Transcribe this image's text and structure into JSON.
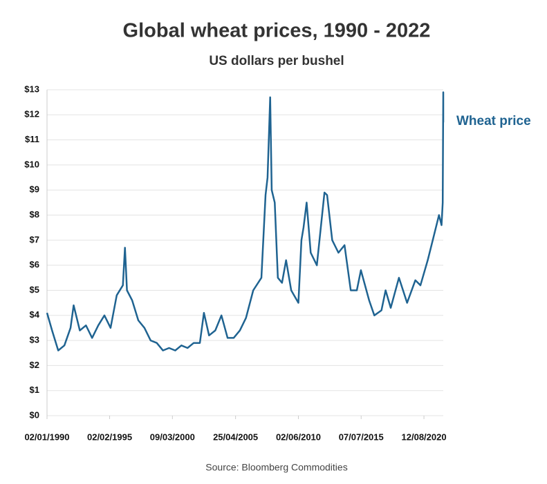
{
  "chart_data": {
    "type": "line",
    "title": "Global wheat prices, 1990 - 2022",
    "subtitle": "US dollars per bushel",
    "source": "Source: Bloomberg Commodities",
    "x": [
      "1990-01-02",
      "1990-06-01",
      "1990-12-01",
      "1991-06-01",
      "1991-12-01",
      "1992-03-01",
      "1992-09-01",
      "1993-03-01",
      "1993-09-01",
      "1994-03-01",
      "1994-09-01",
      "1995-03-01",
      "1995-09-01",
      "1996-03-01",
      "1996-05-01",
      "1996-07-01",
      "1996-12-01",
      "1997-06-01",
      "1997-12-01",
      "1998-06-01",
      "1998-12-01",
      "1999-06-01",
      "1999-12-01",
      "2000-06-01",
      "2000-12-01",
      "2001-06-01",
      "2001-12-01",
      "2002-06-01",
      "2002-10-01",
      "2003-03-01",
      "2003-09-01",
      "2004-03-01",
      "2004-09-01",
      "2005-03-01",
      "2005-09-01",
      "2006-03-01",
      "2006-10-01",
      "2007-06-01",
      "2007-10-01",
      "2007-12-01",
      "2008-02-15",
      "2008-04-01",
      "2008-07-01",
      "2008-10-01",
      "2009-02-01",
      "2009-06-01",
      "2009-11-01",
      "2010-06-01",
      "2010-09-01",
      "2010-11-01",
      "2011-02-01",
      "2011-06-01",
      "2011-12-01",
      "2012-07-15",
      "2012-10-01",
      "2013-03-01",
      "2013-09-01",
      "2014-03-01",
      "2014-09-01",
      "2015-03-01",
      "2015-07-01",
      "2016-03-01",
      "2016-08-01",
      "2017-03-01",
      "2017-07-01",
      "2017-12-01",
      "2018-08-01",
      "2019-04-01",
      "2019-12-01",
      "2020-05-01",
      "2020-12-01",
      "2021-05-01",
      "2021-11-01",
      "2022-01-15",
      "2022-02-20",
      "2022-03-07",
      "2022-03-08"
    ],
    "series": [
      {
        "name": "Wheat price",
        "color": "#1f6391",
        "values": [
          4.1,
          3.4,
          2.6,
          2.8,
          3.5,
          4.4,
          3.4,
          3.6,
          3.1,
          3.6,
          4.0,
          3.5,
          4.8,
          5.2,
          6.7,
          5.0,
          4.6,
          3.8,
          3.5,
          3.0,
          2.9,
          2.6,
          2.7,
          2.6,
          2.8,
          2.7,
          2.9,
          2.9,
          4.1,
          3.2,
          3.4,
          4.0,
          3.1,
          3.1,
          3.4,
          3.9,
          5.0,
          5.5,
          8.8,
          9.5,
          12.7,
          9.0,
          8.5,
          5.5,
          5.3,
          6.2,
          5.0,
          4.5,
          7.0,
          7.5,
          8.5,
          6.5,
          6.0,
          8.9,
          8.8,
          7.0,
          6.5,
          6.8,
          5.0,
          5.0,
          5.8,
          4.6,
          4.0,
          4.2,
          5.0,
          4.3,
          5.5,
          4.5,
          5.4,
          5.2,
          6.2,
          7.0,
          8.0,
          7.6,
          8.5,
          12.9,
          11.7
        ]
      }
    ],
    "xlim": [
      "1990-01-02",
      "2022-03-08"
    ],
    "xticks": [
      {
        "value": "1990-01-02",
        "label": "02/01/1990"
      },
      {
        "value": "1995-02-02",
        "label": "02/02/1995"
      },
      {
        "value": "2000-03-09",
        "label": "09/03/2000"
      },
      {
        "value": "2005-04-25",
        "label": "25/04/2005"
      },
      {
        "value": "2010-06-02",
        "label": "02/06/2010"
      },
      {
        "value": "2015-07-07",
        "label": "07/07/2015"
      },
      {
        "value": "2020-08-12",
        "label": "12/08/2020"
      }
    ],
    "ylim": [
      0,
      13
    ],
    "yticks": [
      {
        "value": 0,
        "label": "$0"
      },
      {
        "value": 1,
        "label": "$1"
      },
      {
        "value": 2,
        "label": "$2"
      },
      {
        "value": 3,
        "label": "$3"
      },
      {
        "value": 4,
        "label": "$4"
      },
      {
        "value": 5,
        "label": "$5"
      },
      {
        "value": 6,
        "label": "$6"
      },
      {
        "value": 7,
        "label": "$7"
      },
      {
        "value": 8,
        "label": "$8"
      },
      {
        "value": 9,
        "label": "$9"
      },
      {
        "value": 10,
        "label": "$10"
      },
      {
        "value": 11,
        "label": "$11"
      },
      {
        "value": 12,
        "label": "$12"
      },
      {
        "value": 13,
        "label": "$13"
      }
    ],
    "grid": true
  }
}
